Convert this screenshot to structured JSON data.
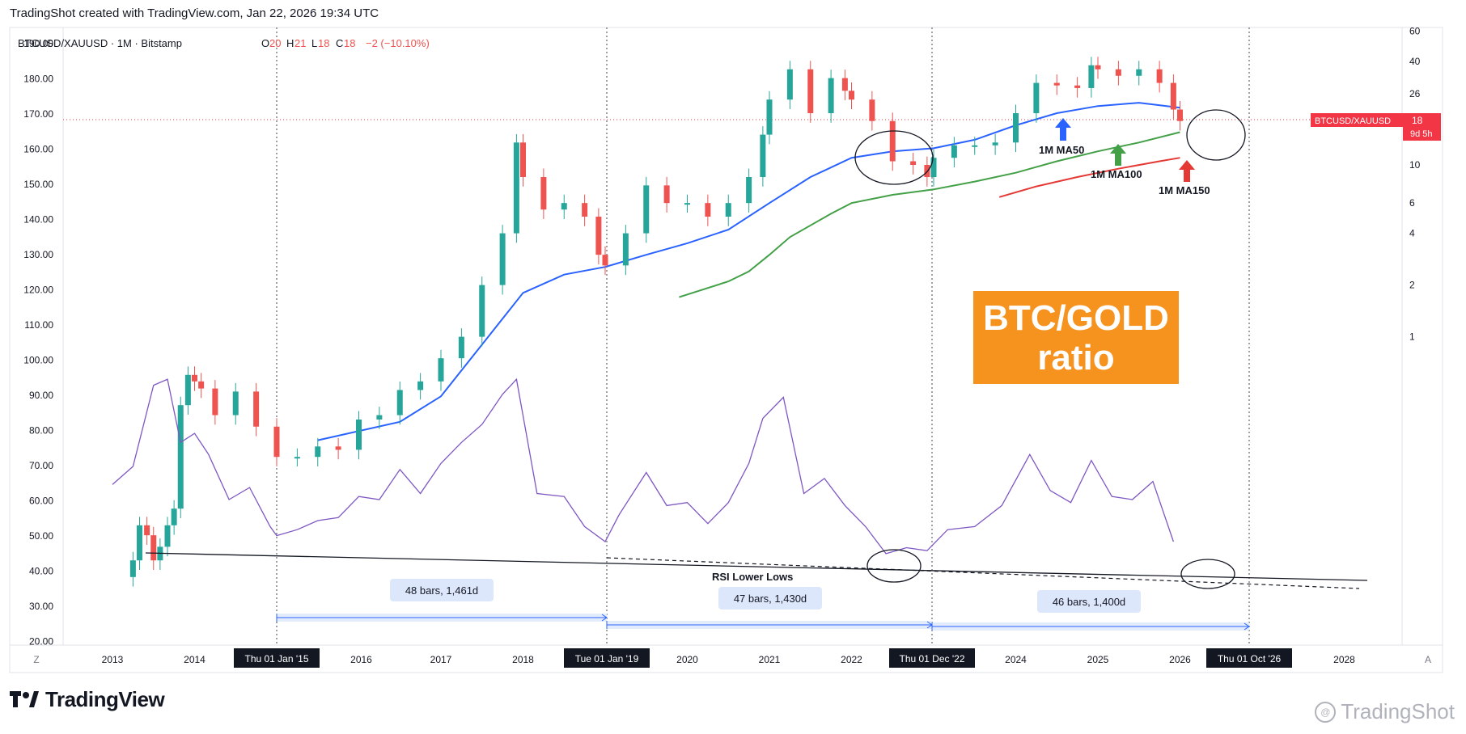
{
  "header": {
    "created": "TradingShot created with TradingView.com, Jan 22, 2026 19:34 UTC"
  },
  "legend": {
    "symbol": "BTCUSD/XAUUSD · 1M · Bitstamp",
    "o_label": "O",
    "o_value": "20",
    "h_label": "H",
    "h_value": "21",
    "l_label": "L",
    "l_value": "18",
    "c_label": "C",
    "c_value": "18",
    "change": "−2 (−10.10%)"
  },
  "colors": {
    "up": "#26a69a",
    "down": "#ef5350",
    "ma50": "#2962ff",
    "ma100": "#43a047",
    "ma150": "#e53935",
    "rsi": "#7e57c2",
    "badge": "#f6921e",
    "price_tag": "#f23645"
  },
  "price_tag": {
    "label": "BTCUSD/XAUUSD",
    "value": "18",
    "countdown": "9d 5h"
  },
  "badge": {
    "line1": "BTC/GOLD",
    "line2": "ratio"
  },
  "annotations": {
    "ma50": "1M MA50",
    "ma100": "1M MA100",
    "ma150": "1M MA150",
    "rsi_lower_lows": "RSI Lower Lows",
    "range1": "48 bars, 1,461d",
    "range2": "47 bars, 1,430d",
    "range3": "46 bars, 1,400d"
  },
  "scale_buttons": {
    "left": "Z",
    "right": "A"
  },
  "chart_data": {
    "type": "line",
    "title": "",
    "x_ticks": [
      "2013",
      "2014",
      "2016",
      "2017",
      "2018",
      "2020",
      "2021",
      "2022",
      "2024",
      "2025",
      "2026",
      "2028"
    ],
    "x_highlight_ticks": [
      "Thu 01 Jan '15",
      "Tue 01 Jan '19",
      "Thu 01 Dec '22",
      "Thu 01 Oct '26"
    ],
    "left_axis_ticks": [
      "190.00",
      "180.00",
      "170.00",
      "160.00",
      "150.00",
      "140.00",
      "130.00",
      "120.00",
      "110.00",
      "100.00",
      "90.00",
      "80.00",
      "70.00",
      "60.00",
      "50.00",
      "40.00",
      "30.00",
      "20.00"
    ],
    "right_axis_ticks": [
      "60",
      "40",
      "26",
      "18",
      "10",
      "6",
      "4",
      "2",
      "1"
    ],
    "right_axis_scale": "log",
    "series": [
      {
        "name": "BTCUSD/XAUUSD",
        "kind": "candlestick",
        "points": [
          [
            2013.25,
            0.05
          ],
          [
            2013.33,
            0.08
          ],
          [
            2013.42,
            0.07
          ],
          [
            2013.5,
            0.05
          ],
          [
            2013.58,
            0.06
          ],
          [
            2013.67,
            0.08
          ],
          [
            2013.75,
            0.1
          ],
          [
            2013.83,
            0.4
          ],
          [
            2013.92,
            0.6
          ],
          [
            2014.0,
            0.55
          ],
          [
            2014.08,
            0.5
          ],
          [
            2014.25,
            0.35
          ],
          [
            2014.5,
            0.48
          ],
          [
            2014.75,
            0.3
          ],
          [
            2015.0,
            0.2
          ],
          [
            2015.25,
            0.2
          ],
          [
            2015.5,
            0.23
          ],
          [
            2015.75,
            0.22
          ],
          [
            2016.0,
            0.33
          ],
          [
            2016.25,
            0.35
          ],
          [
            2016.5,
            0.49
          ],
          [
            2016.75,
            0.55
          ],
          [
            2017.0,
            0.75
          ],
          [
            2017.25,
            1.0
          ],
          [
            2017.5,
            2.0
          ],
          [
            2017.75,
            4.0
          ],
          [
            2017.92,
            13.5
          ],
          [
            2018.0,
            8.5
          ],
          [
            2018.25,
            5.5
          ],
          [
            2018.5,
            6.0
          ],
          [
            2018.75,
            5.0
          ],
          [
            2018.92,
            3.0
          ],
          [
            2019.0,
            2.6
          ],
          [
            2019.25,
            4.0
          ],
          [
            2019.5,
            7.6
          ],
          [
            2019.75,
            6.0
          ],
          [
            2020.0,
            6.0
          ],
          [
            2020.25,
            5.0
          ],
          [
            2020.5,
            6.0
          ],
          [
            2020.75,
            8.5
          ],
          [
            2020.92,
            15.0
          ],
          [
            2021.0,
            24.0
          ],
          [
            2021.25,
            36.0
          ],
          [
            2021.5,
            20.0
          ],
          [
            2021.75,
            32.0
          ],
          [
            2021.92,
            27.0
          ],
          [
            2022.0,
            24.0
          ],
          [
            2022.25,
            18.0
          ],
          [
            2022.5,
            10.5
          ],
          [
            2022.75,
            10.0
          ],
          [
            2022.92,
            8.5
          ],
          [
            2023.0,
            11.0
          ],
          [
            2023.25,
            13.0
          ],
          [
            2023.5,
            13.0
          ],
          [
            2023.75,
            13.5
          ],
          [
            2024.0,
            20.0
          ],
          [
            2024.25,
            30.0
          ],
          [
            2024.5,
            29.0
          ],
          [
            2024.75,
            28.0
          ],
          [
            2024.92,
            38.0
          ],
          [
            2025.0,
            36.0
          ],
          [
            2025.25,
            33.0
          ],
          [
            2025.5,
            36.0
          ],
          [
            2025.75,
            30.0
          ],
          [
            2025.92,
            21.0
          ],
          [
            2026.0,
            18.0
          ]
        ]
      },
      {
        "name": "1M MA50",
        "kind": "line",
        "points": [
          [
            2015.5,
            0.25
          ],
          [
            2016.5,
            0.32
          ],
          [
            2017.0,
            0.45
          ],
          [
            2017.5,
            0.9
          ],
          [
            2018.0,
            1.8
          ],
          [
            2018.5,
            2.3
          ],
          [
            2019.0,
            2.55
          ],
          [
            2019.5,
            3.0
          ],
          [
            2020.0,
            3.5
          ],
          [
            2020.5,
            4.2
          ],
          [
            2021.0,
            6.0
          ],
          [
            2021.5,
            8.5
          ],
          [
            2022.0,
            11.0
          ],
          [
            2022.5,
            12.0
          ],
          [
            2023.0,
            12.5
          ],
          [
            2023.5,
            14.0
          ],
          [
            2024.0,
            17.0
          ],
          [
            2024.5,
            20.0
          ],
          [
            2025.0,
            22.0
          ],
          [
            2025.5,
            23.0
          ],
          [
            2026.0,
            21.5
          ]
        ]
      },
      {
        "name": "1M MA100",
        "kind": "line",
        "points": [
          [
            2019.9,
            1.7
          ],
          [
            2020.5,
            2.1
          ],
          [
            2020.75,
            2.4
          ],
          [
            2021.0,
            3.0
          ],
          [
            2021.25,
            3.8
          ],
          [
            2021.75,
            5.2
          ],
          [
            2022.0,
            6.0
          ],
          [
            2022.5,
            6.7
          ],
          [
            2023.0,
            7.2
          ],
          [
            2023.5,
            8.0
          ],
          [
            2024.0,
            9.0
          ],
          [
            2024.5,
            10.5
          ],
          [
            2025.0,
            12.0
          ],
          [
            2025.5,
            13.5
          ],
          [
            2026.0,
            15.5
          ]
        ]
      },
      {
        "name": "1M MA150",
        "kind": "line",
        "points": [
          [
            2023.8,
            6.5
          ],
          [
            2024.25,
            7.5
          ],
          [
            2024.75,
            8.5
          ],
          [
            2025.25,
            9.5
          ],
          [
            2025.75,
            10.5
          ],
          [
            2026.0,
            11.0
          ]
        ]
      },
      {
        "name": "RSI",
        "kind": "line",
        "points": [
          [
            2013.0,
            62
          ],
          [
            2013.25,
            68
          ],
          [
            2013.5,
            95
          ],
          [
            2013.67,
            97
          ],
          [
            2013.83,
            76
          ],
          [
            2014.0,
            79
          ],
          [
            2014.17,
            72
          ],
          [
            2014.42,
            57
          ],
          [
            2014.67,
            61
          ],
          [
            2014.92,
            48
          ],
          [
            2015.0,
            45
          ],
          [
            2015.25,
            47
          ],
          [
            2015.5,
            50
          ],
          [
            2015.75,
            51
          ],
          [
            2016.0,
            58
          ],
          [
            2016.25,
            57
          ],
          [
            2016.5,
            67
          ],
          [
            2016.75,
            59
          ],
          [
            2017.0,
            69
          ],
          [
            2017.25,
            76
          ],
          [
            2017.5,
            82
          ],
          [
            2017.75,
            92
          ],
          [
            2017.92,
            97
          ],
          [
            2018.17,
            59
          ],
          [
            2018.5,
            58
          ],
          [
            2018.75,
            48
          ],
          [
            2019.0,
            43
          ],
          [
            2019.17,
            52
          ],
          [
            2019.5,
            66
          ],
          [
            2019.75,
            55
          ],
          [
            2020.0,
            56
          ],
          [
            2020.25,
            49
          ],
          [
            2020.5,
            56
          ],
          [
            2020.75,
            69
          ],
          [
            2020.92,
            84
          ],
          [
            2021.17,
            91
          ],
          [
            2021.42,
            59
          ],
          [
            2021.67,
            64
          ],
          [
            2021.92,
            55
          ],
          [
            2022.17,
            48
          ],
          [
            2022.42,
            39
          ],
          [
            2022.67,
            41
          ],
          [
            2022.92,
            40
          ],
          [
            2023.17,
            47
          ],
          [
            2023.5,
            48
          ],
          [
            2023.83,
            55
          ],
          [
            2024.17,
            72
          ],
          [
            2024.42,
            60
          ],
          [
            2024.67,
            56
          ],
          [
            2024.92,
            70
          ],
          [
            2025.17,
            58
          ],
          [
            2025.42,
            57
          ],
          [
            2025.67,
            63
          ],
          [
            2025.92,
            43
          ]
        ]
      }
    ],
    "grid": false
  }
}
